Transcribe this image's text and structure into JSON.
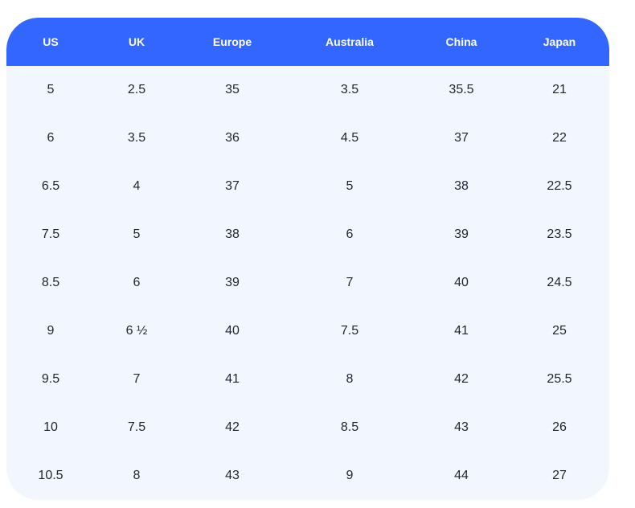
{
  "table": {
    "header": [
      "US",
      "UK",
      "Europe",
      "Australia",
      "China",
      "Japan"
    ],
    "rows": [
      [
        "5",
        "2.5",
        "35",
        "3.5",
        "35.5",
        "21"
      ],
      [
        "6",
        "3.5",
        "36",
        "4.5",
        "37",
        "22"
      ],
      [
        "6.5",
        "4",
        "37",
        "5",
        "38",
        "22.5"
      ],
      [
        "7.5",
        "5",
        "38",
        "6",
        "39",
        "23.5"
      ],
      [
        "8.5",
        "6",
        "39",
        "7",
        "40",
        "24.5"
      ],
      [
        "9",
        "6 ½",
        "40",
        "7.5",
        "41",
        "25"
      ],
      [
        "9.5",
        "7",
        "41",
        "8",
        "42",
        "25.5"
      ],
      [
        "10",
        "7.5",
        "42",
        "8.5",
        "43",
        "26"
      ],
      [
        "10.5",
        "8",
        "43",
        "9",
        "44",
        "27"
      ]
    ]
  }
}
